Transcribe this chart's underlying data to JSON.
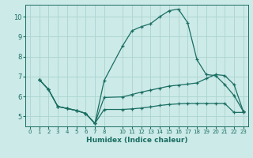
{
  "xlabel": "Humidex (Indice chaleur)",
  "background_color": "#cceae8",
  "grid_color": "#aad4d0",
  "line_color": "#1a6e62",
  "xlim": [
    -0.5,
    23.5
  ],
  "ylim": [
    4.5,
    10.6
  ],
  "yticks": [
    5,
    6,
    7,
    8,
    9,
    10
  ],
  "xticks": [
    0,
    1,
    2,
    3,
    4,
    5,
    6,
    7,
    8,
    10,
    11,
    12,
    13,
    14,
    15,
    16,
    17,
    18,
    19,
    20,
    21,
    22,
    23
  ],
  "curve1_x": [
    1,
    2,
    3,
    4,
    5,
    6,
    7,
    8,
    10,
    11,
    12,
    13,
    14,
    15,
    16,
    17,
    18,
    19,
    20,
    21,
    22,
    23
  ],
  "curve1_y": [
    6.85,
    6.35,
    5.5,
    5.4,
    5.3,
    5.15,
    4.65,
    6.8,
    8.55,
    9.3,
    9.5,
    9.65,
    10.0,
    10.3,
    10.38,
    9.7,
    7.85,
    7.1,
    7.05,
    6.6,
    6.05,
    5.25
  ],
  "curve2_x": [
    1,
    2,
    3,
    4,
    5,
    6,
    7,
    8,
    10,
    11,
    12,
    13,
    14,
    15,
    16,
    17,
    18,
    19,
    20,
    21,
    22,
    23
  ],
  "curve2_y": [
    6.85,
    6.35,
    5.5,
    5.4,
    5.3,
    5.15,
    4.65,
    5.35,
    5.35,
    5.38,
    5.42,
    5.48,
    5.55,
    5.6,
    5.63,
    5.65,
    5.65,
    5.65,
    5.65,
    5.65,
    5.2,
    5.2
  ],
  "curve3_x": [
    1,
    2,
    3,
    4,
    5,
    6,
    7,
    8,
    10,
    11,
    12,
    13,
    14,
    15,
    16,
    17,
    18,
    19,
    20,
    21,
    22,
    23
  ],
  "curve3_y": [
    6.85,
    6.35,
    5.5,
    5.4,
    5.3,
    5.15,
    4.65,
    5.95,
    5.98,
    6.1,
    6.22,
    6.32,
    6.42,
    6.52,
    6.57,
    6.62,
    6.68,
    6.9,
    7.1,
    7.05,
    6.6,
    5.25
  ]
}
